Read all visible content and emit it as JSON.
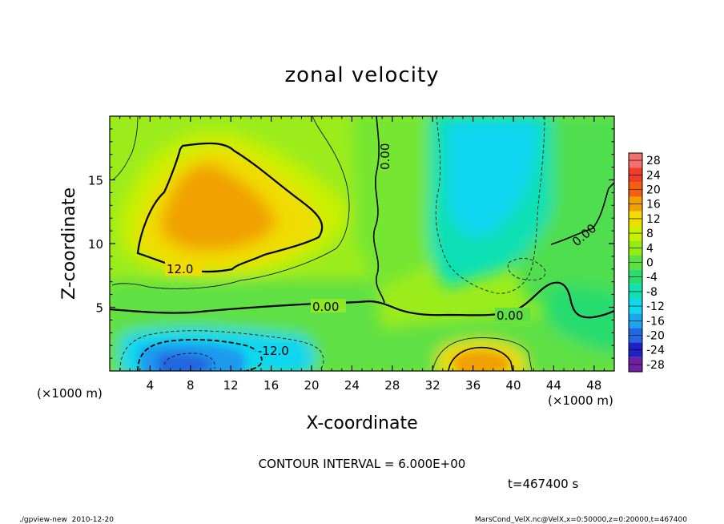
{
  "chart_data": {
    "type": "heatmap",
    "title": "zonal velocity",
    "xlabel": "X-coordinate",
    "ylabel": "Z-coordinate",
    "x_unit": "(×1000 m)",
    "y_unit": "(×1000 m)",
    "xlim": [
      0,
      50
    ],
    "ylim": [
      0,
      20
    ],
    "x_ticks": [
      4,
      8,
      12,
      16,
      20,
      24,
      28,
      32,
      36,
      40,
      44,
      48
    ],
    "y_ticks": [
      5,
      10,
      15
    ],
    "colorbar_ticks": [
      28,
      24,
      20,
      16,
      12,
      8,
      4,
      0,
      -4,
      -8,
      -12,
      -16,
      -20,
      -24,
      -28
    ],
    "colorbar_colors": [
      "#f07070",
      "#f03c28",
      "#f06010",
      "#f0a000",
      "#f0dc00",
      "#c8f000",
      "#96ec10",
      "#5ae040",
      "#28dc6e",
      "#10e0b4",
      "#10d6f0",
      "#1aa6ee",
      "#2266e0",
      "#2020c8",
      "#7020a0"
    ],
    "contour_interval": "CONTOUR INTERVAL = 6.000E+00",
    "contour_labels": [
      "12.0",
      "0.00",
      "0.00",
      "0.00",
      "0.00",
      "-12.0"
    ],
    "time_label": "t=467400 s",
    "footer_left": "./gpview-new  2010-12-20",
    "footer_right": "MarsCond_VelX.nc@VelX,x=0:50000,z=0:20000,t=467400"
  }
}
